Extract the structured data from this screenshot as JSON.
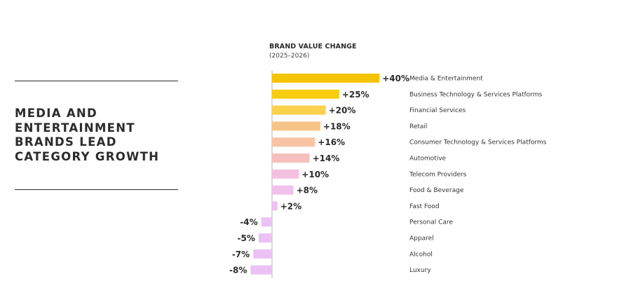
{
  "headline": "MEDIA AND\nENTERTAINMENT\nBRANDS LEAD\nCATEGORY GROWTH",
  "chart_data": {
    "type": "bar",
    "orientation": "horizontal",
    "title": "BRAND VALUE CHANGE",
    "subtitle": "(2025–2026)",
    "grid": false,
    "legend": "none",
    "categories": [
      "Media & Entertainment",
      "Business Technology & Services Platforms",
      "Financial Services",
      "Retail",
      "Consumer Technology & Services Platforms",
      "Automotive",
      "Telecom Providers",
      "Food & Beverage",
      "Fast Food",
      "Personal Care",
      "Apparel",
      "Alcohol",
      "Luxury"
    ],
    "values": [
      40,
      25,
      20,
      18,
      16,
      14,
      10,
      8,
      2,
      -4,
      -5,
      -7,
      -8
    ],
    "value_labels": [
      "+40%",
      "+25%",
      "+20%",
      "+18%",
      "+16%",
      "+14%",
      "+10%",
      "+8%",
      "+2%",
      "-4%",
      "-5%",
      "-7%",
      "-8%"
    ],
    "colors": [
      "#f5c400",
      "#f8cd10",
      "#fbd04a",
      "#f7c487",
      "#f8c4a4",
      "#f7c0c0",
      "#f3c0e0",
      "#f1c0ec",
      "#eec1f3",
      "#ecc1f5",
      "#ecc1f5",
      "#ecc1f5",
      "#ecc1f5"
    ],
    "axis_color": "#b5b5b5"
  }
}
